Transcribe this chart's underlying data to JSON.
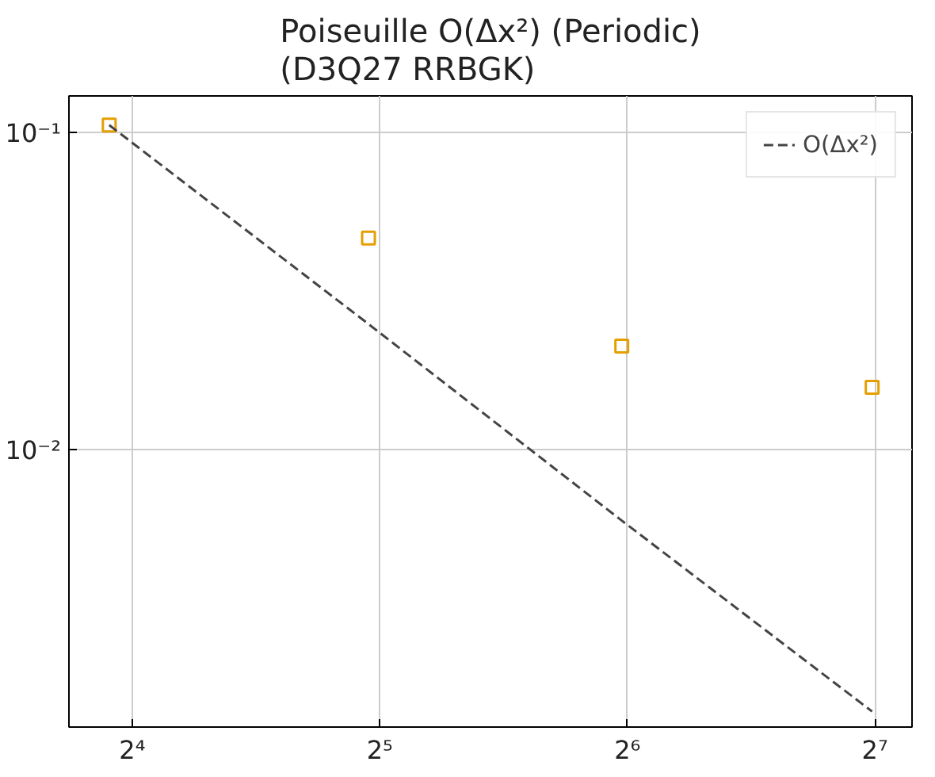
{
  "chart_data": {
    "type": "scatter",
    "title": "Poiseuille O(Δx²) (Periodic)",
    "subtitle": "(D3Q27 RRBGK)",
    "log": "xy",
    "grid": true,
    "legend": "top right",
    "xlim": [
      13.4,
      142
    ],
    "ylim": [
      0.00134,
      0.131
    ],
    "xticks": [
      {
        "value": 16,
        "label": "2⁴"
      },
      {
        "value": 32,
        "label": "2⁵"
      },
      {
        "value": 64,
        "label": "2⁶"
      },
      {
        "value": 128,
        "label": "2⁷"
      }
    ],
    "yticks": [
      {
        "value": 0.01,
        "label": "10⁻²"
      },
      {
        "value": 0.1,
        "label": "10⁻¹"
      }
    ],
    "x": [
      15,
      31,
      63,
      127
    ],
    "series": [
      {
        "color": "#e69f00",
        "marker": "square",
        "values": [
          0.106,
          0.0467,
          0.0213,
          0.0158
        ]
      },
      {
        "type": "line",
        "name": "O(Δx²)",
        "color": "#444444",
        "line_style": "dashed",
        "marker": "none",
        "values": [
          0.106,
          0.025,
          0.006,
          0.0015
        ]
      }
    ]
  }
}
